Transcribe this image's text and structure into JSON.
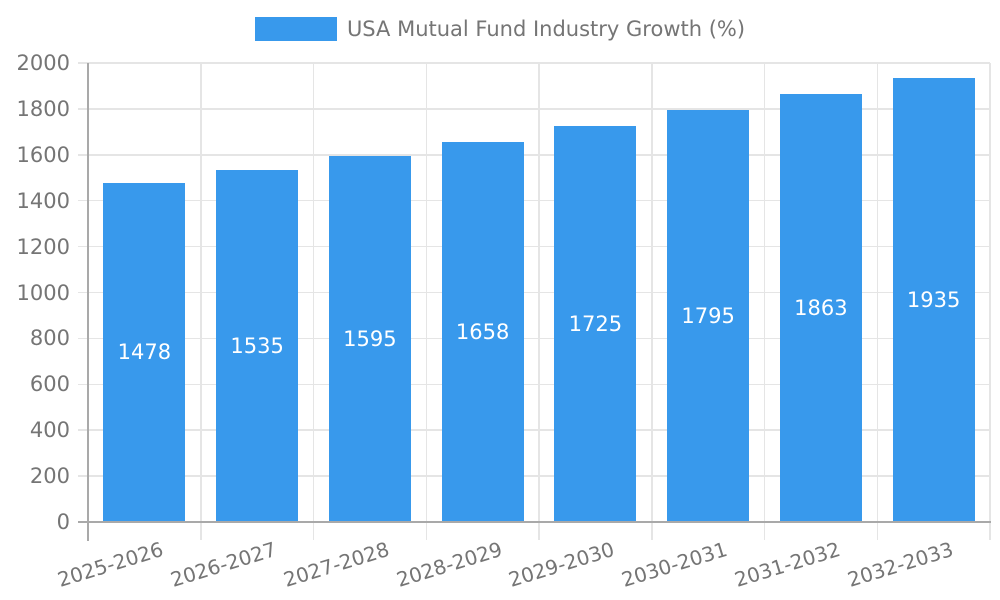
{
  "chart_data": {
    "type": "bar",
    "title": "USA Mutual Fund Industry Growth (%)",
    "legend": {
      "label": "USA Mutual Fund Industry Growth (%)",
      "position": "top-center"
    },
    "categories": [
      "2025-2026",
      "2026-2027",
      "2027-2028",
      "2028-2029",
      "2029-2030",
      "2030-2031",
      "2031-2032",
      "2032-2033"
    ],
    "values": [
      1478,
      1535,
      1595,
      1658,
      1725,
      1795,
      1863,
      1935
    ],
    "bar_value_labels": [
      "1478",
      "1535",
      "1595",
      "1658",
      "1725",
      "1795",
      "1863",
      "1935"
    ],
    "xlabel": "",
    "ylabel": "",
    "ylim": [
      0,
      2000
    ],
    "yticks": [
      0,
      200,
      400,
      600,
      800,
      1000,
      1200,
      1400,
      1600,
      1800,
      2000
    ],
    "grid": true,
    "colors": {
      "bar": "#3899EC",
      "bar_label": "#FFFFFF",
      "axis": "#A9A9A9",
      "grid": "#E5E5E5",
      "text": "#757575",
      "background": "#FFFFFF"
    }
  }
}
